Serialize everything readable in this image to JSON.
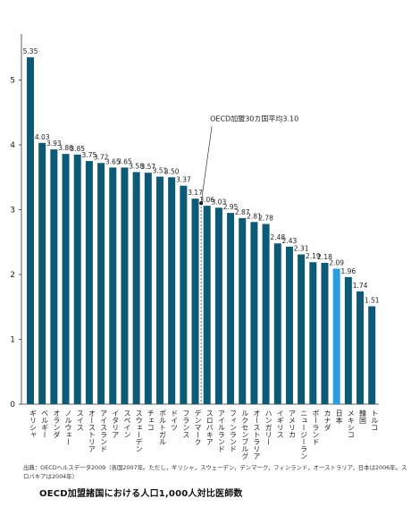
{
  "chart_data": {
    "type": "bar",
    "categories": [
      "ギリシャ",
      "ベルギー",
      "オランダ",
      "ノルウェー",
      "スイス",
      "オーストリア",
      "アイスランド",
      "イタリア",
      "スペイン",
      "スウェーデン",
      "チェコ",
      "ポルトガル",
      "ドイツ",
      "フランス",
      "デンマーク",
      "スロバキア",
      "アイルランド",
      "フィンランド",
      "ルクセンブルグ",
      "オーストラリア",
      "ハンガリー",
      "イギリス",
      "アメリカ",
      "ニュージーランド",
      "ポーランド",
      "カナダ",
      "日本",
      "メキシコ",
      "韓国",
      "トルコ"
    ],
    "values": [
      5.35,
      4.03,
      3.93,
      3.86,
      3.85,
      3.75,
      3.72,
      3.65,
      3.65,
      3.58,
      3.57,
      3.51,
      3.5,
      3.37,
      3.17,
      3.06,
      3.03,
      2.95,
      2.87,
      2.81,
      2.78,
      2.48,
      2.43,
      2.31,
      2.19,
      2.18,
      2.09,
      1.96,
      1.74,
      1.51
    ],
    "value_labels": [
      "5.35",
      "4.03",
      "3.93",
      "3.86",
      "3.85",
      "3.75",
      "3.72",
      "3.65",
      "3.65",
      "3.58",
      "3.57",
      "3.51",
      "3.50",
      "3.37",
      "3.17",
      "3.06",
      "3.03",
      "2.95",
      "2.87",
      "2.81",
      "2.78",
      "2.48",
      "2.43",
      "2.31",
      "2.19",
      "2.18",
      "2.09",
      "1.96",
      "1.74",
      "1.51"
    ],
    "highlight_category": "日本",
    "yticks": [
      "0",
      "1",
      "2",
      "3",
      "4",
      "5"
    ],
    "ylim": [
      0,
      5.6
    ],
    "average": {
      "value": 3.1,
      "label": "OECD加盟30カ国平均3.10"
    },
    "grid": false,
    "colors": {
      "bar": "#0d5a76",
      "highlight": "#2a9ee0",
      "highlight_label": "#2a9ee0",
      "axis": "#333333"
    }
  },
  "note": "出典：OECDヘルスデータ2009（各国2007年。ただし，ギリシャ，スウェーデン，デンマーク，フィンランド，オーストラリア，日本は2006年。スロバキアは2004年）",
  "caption": "OECD加盟諸国における人口1,000人対比医師数"
}
